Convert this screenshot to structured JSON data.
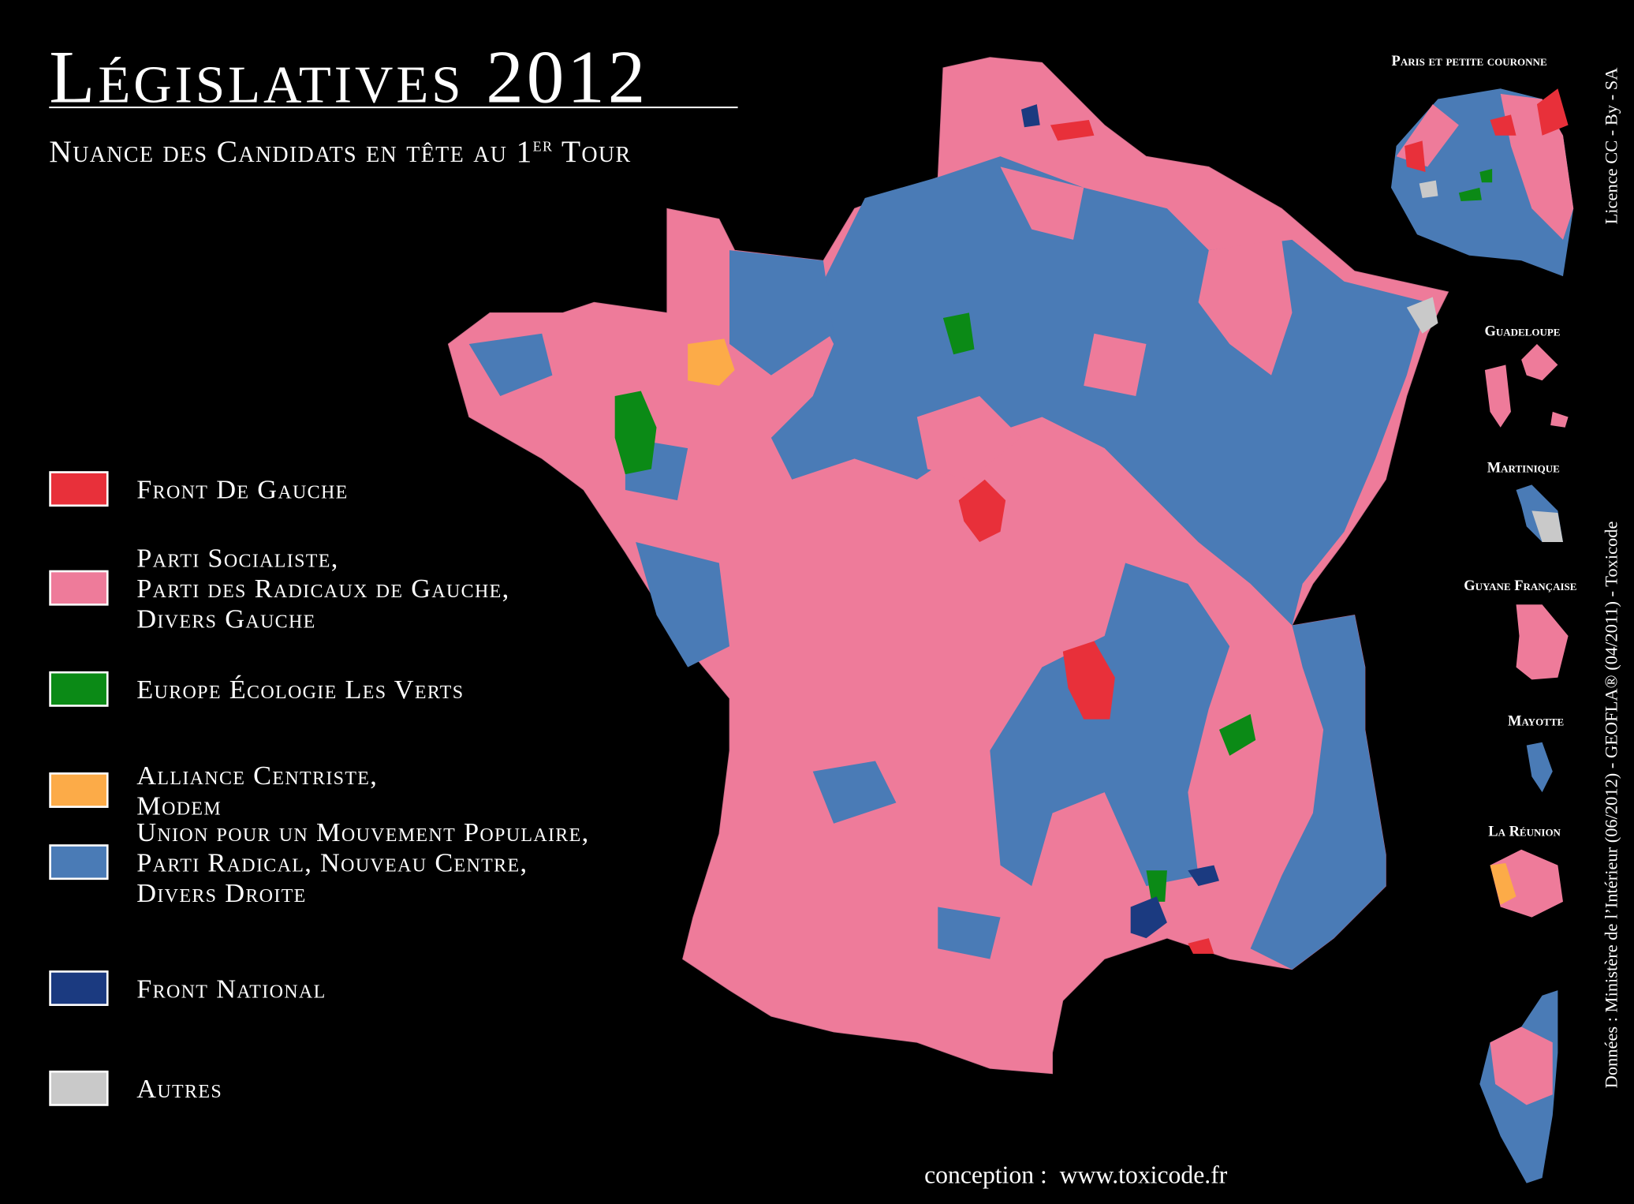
{
  "title": "Législatives 2012",
  "subtitle": {
    "main": "Nuance des Candidats en tête au 1",
    "superscript": "er",
    "end": " Tour"
  },
  "legend": [
    {
      "lines": [
        "Front De Gauche"
      ],
      "color": "#e8303a"
    },
    {
      "lines": [
        "Parti Socialiste,",
        "Parti des Radicaux de Gauche,",
        "Divers Gauche"
      ],
      "color": "#ee7b9a"
    },
    {
      "lines": [
        "Europe Écologie Les Verts"
      ],
      "color": "#0b8a16"
    },
    {
      "lines": [
        "Alliance Centriste,",
        "Modem"
      ],
      "color": "#fcab48"
    },
    {
      "lines": [
        "Union pour un Mouvement Populaire,",
        "Parti Radical, Nouveau Centre,",
        "Divers Droite"
      ],
      "color": "#4a7bb6"
    },
    {
      "lines": [
        "Front National"
      ],
      "color": "#1b3a80"
    },
    {
      "lines": [
        "Autres"
      ],
      "color": "#c9c9c9"
    }
  ],
  "insets": [
    "Paris et petite couronne",
    "Guadeloupe",
    "Martinique",
    "Guyane Française",
    "Mayotte",
    "La Réunion"
  ],
  "license": "Licence  CC - By - SA",
  "sources": "Données : Ministère de l’Intérieur (06/2012) - GEOFLA® (04/2011) - Toxicode",
  "credit": "conception :  www.toxicode.fr"
}
